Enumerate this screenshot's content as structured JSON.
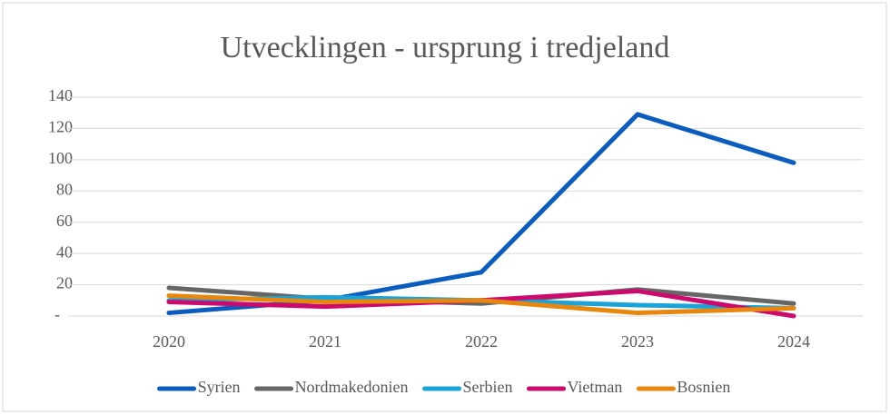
{
  "chart_data": {
    "type": "line",
    "title": "Utvecklingen - ursprung i tredjeland",
    "categories": [
      "2020",
      "2021",
      "2022",
      "2023",
      "2024"
    ],
    "series": [
      {
        "name": "Syrien",
        "color": "#0a5cbf",
        "values": [
          2,
          10,
          28,
          129,
          98
        ]
      },
      {
        "name": "Nordmakedonien",
        "color": "#666666",
        "values": [
          18,
          11,
          8,
          17,
          8
        ]
      },
      {
        "name": "Serbien",
        "color": "#1aa3d9",
        "values": [
          10,
          12,
          10,
          7,
          5
        ]
      },
      {
        "name": "Vietman",
        "color": "#cc0a6e",
        "values": [
          9,
          6,
          10,
          16,
          0
        ]
      },
      {
        "name": "Bosnien",
        "color": "#e8870e",
        "values": [
          13,
          9,
          10,
          2,
          5
        ]
      }
    ],
    "ylim": [
      0,
      140
    ],
    "yticks": [
      {
        "value": 0,
        "label": "-"
      },
      20,
      40,
      60,
      80,
      100,
      120,
      140
    ],
    "grid": true,
    "legend": "bottom"
  }
}
